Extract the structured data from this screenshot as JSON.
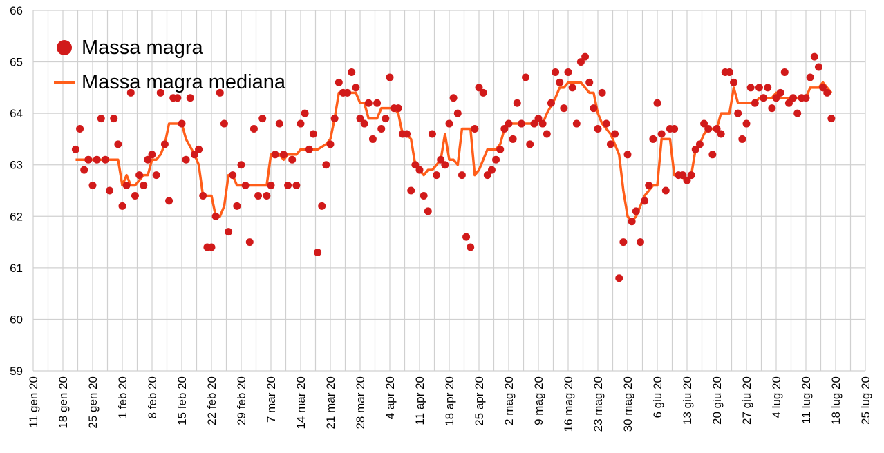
{
  "chart_data": {
    "type": "scatter",
    "title": "",
    "xlabel": "",
    "ylabel": "",
    "x_unit": "days since 11 gen 20",
    "xlim": [
      0,
      196
    ],
    "ylim": [
      59,
      66
    ],
    "yticks": [
      59,
      60,
      61,
      62,
      63,
      64,
      65,
      66
    ],
    "xtick_labels": [
      "11 gen 20",
      "18 gen 20",
      "25 gen 20",
      "1 feb 20",
      "8 feb 20",
      "15 feb 20",
      "22 feb 20",
      "29 feb 20",
      "7 mar 20",
      "14 mar 20",
      "21 mar 20",
      "28 mar 20",
      "4 apr 20",
      "11 apr 20",
      "18 apr 20",
      "25 apr 20",
      "2 mag 20",
      "9 mag 20",
      "16 mag 20",
      "23 mag 20",
      "30 mag 20",
      "6 giu 20",
      "13 giu 20",
      "20 giu 20",
      "27 giu 20",
      "4 lug 20",
      "11 lug 20",
      "18 lug 20",
      "25 lug 20"
    ],
    "grid": true,
    "legend_position": "top-left",
    "colors": {
      "points": "#d11a1a",
      "median": "#ff5e1a",
      "grid": "#d0d0d0"
    },
    "series": [
      {
        "name": "Massa magra",
        "kind": "scatter",
        "start_day": 10,
        "values": [
          63.3,
          63.7,
          62.9,
          63.1,
          62.6,
          63.1,
          63.9,
          63.1,
          62.5,
          63.9,
          63.4,
          62.2,
          62.6,
          64.4,
          62.4,
          62.8,
          62.6,
          63.1,
          63.2,
          62.8,
          64.4,
          63.4,
          62.3,
          64.3,
          64.3,
          63.8,
          63.1,
          64.3,
          63.2,
          63.3,
          62.4,
          61.4,
          61.4,
          62.0,
          64.4,
          63.8,
          61.7,
          62.8,
          62.2,
          63.0,
          62.6,
          61.5,
          63.7,
          62.4,
          63.9,
          62.4,
          62.6,
          63.2,
          63.8,
          63.2,
          62.6,
          63.1,
          62.6,
          63.8,
          64.0,
          63.3,
          63.6,
          61.3,
          62.2,
          63.0,
          63.4,
          63.9,
          64.6,
          64.4,
          64.4,
          64.8,
          64.5,
          63.9,
          63.8,
          64.2,
          63.5,
          64.2,
          63.7,
          63.9,
          64.7,
          64.1,
          64.1,
          63.6,
          63.6,
          62.5,
          63.0,
          62.9,
          62.4,
          62.1,
          63.6,
          62.8,
          63.1,
          63.0,
          63.8,
          64.3,
          64.0,
          62.8,
          61.6,
          61.4,
          63.7,
          64.5,
          64.4,
          62.8,
          62.9,
          63.1,
          63.3,
          63.7,
          63.8,
          63.5,
          64.2,
          63.8,
          64.7,
          63.4,
          63.8,
          63.9,
          63.8,
          63.6,
          64.2,
          64.8,
          64.6,
          64.1,
          64.8,
          64.5,
          63.8,
          65.0,
          65.1,
          64.6,
          64.1,
          63.7,
          64.4,
          63.8,
          63.4,
          63.6,
          60.8,
          61.5,
          63.2,
          61.9,
          62.1,
          61.5,
          62.3,
          62.6,
          63.5,
          64.2,
          63.6,
          62.5,
          63.7,
          63.7,
          62.8,
          62.8,
          62.7,
          62.8,
          63.3,
          63.4,
          63.8,
          63.7,
          63.2,
          63.7,
          63.6,
          64.8,
          64.8,
          64.6,
          64.0,
          63.5,
          63.8,
          64.5,
          64.2,
          64.5,
          64.3,
          64.5,
          64.1,
          64.3,
          64.4,
          64.8,
          64.2,
          64.3,
          64.0,
          64.3,
          64.3,
          64.7,
          65.1,
          64.9,
          64.5,
          64.4,
          63.9
        ]
      },
      {
        "name": "Massa magra mediana",
        "kind": "line",
        "points": [
          [
            10,
            63.1
          ],
          [
            20,
            63.1
          ],
          [
            21,
            62.6
          ],
          [
            22,
            62.8
          ],
          [
            23,
            62.6
          ],
          [
            24,
            62.6
          ],
          [
            26,
            62.8
          ],
          [
            27,
            62.8
          ],
          [
            28,
            63.1
          ],
          [
            29,
            63.1
          ],
          [
            30,
            63.2
          ],
          [
            31,
            63.4
          ],
          [
            32,
            63.8
          ],
          [
            35,
            63.8
          ],
          [
            36,
            63.5
          ],
          [
            38,
            63.2
          ],
          [
            39,
            63.0
          ],
          [
            40,
            62.4
          ],
          [
            42,
            62.4
          ],
          [
            43,
            62.0
          ],
          [
            44,
            62.0
          ],
          [
            45,
            62.2
          ],
          [
            46,
            62.8
          ],
          [
            47,
            62.8
          ],
          [
            48,
            62.6
          ],
          [
            55,
            62.6
          ],
          [
            56,
            63.2
          ],
          [
            58,
            63.2
          ],
          [
            59,
            63.1
          ],
          [
            60,
            63.2
          ],
          [
            62,
            63.2
          ],
          [
            63,
            63.3
          ],
          [
            67,
            63.3
          ],
          [
            69,
            63.4
          ],
          [
            70,
            63.5
          ],
          [
            71,
            63.9
          ],
          [
            72,
            64.4
          ],
          [
            76,
            64.4
          ],
          [
            77,
            64.2
          ],
          [
            78,
            64.2
          ],
          [
            79,
            63.9
          ],
          [
            81,
            63.9
          ],
          [
            82,
            64.1
          ],
          [
            85,
            64.1
          ],
          [
            86,
            64.0
          ],
          [
            87,
            63.6
          ],
          [
            88,
            63.6
          ],
          [
            89,
            63.5
          ],
          [
            90,
            63.0
          ],
          [
            91,
            62.9
          ],
          [
            92,
            62.8
          ],
          [
            93,
            62.9
          ],
          [
            94,
            62.9
          ],
          [
            95,
            63.0
          ],
          [
            96,
            63.1
          ],
          [
            97,
            63.6
          ],
          [
            98,
            63.1
          ],
          [
            99,
            63.1
          ],
          [
            100,
            63.0
          ],
          [
            101,
            63.7
          ],
          [
            103,
            63.7
          ],
          [
            104,
            62.8
          ],
          [
            105,
            62.9
          ],
          [
            107,
            63.3
          ],
          [
            109,
            63.3
          ],
          [
            110,
            63.4
          ],
          [
            111,
            63.7
          ],
          [
            112,
            63.8
          ],
          [
            118,
            63.8
          ],
          [
            119,
            63.9
          ],
          [
            120,
            63.8
          ],
          [
            121,
            64.0
          ],
          [
            123,
            64.3
          ],
          [
            124,
            64.5
          ],
          [
            125,
            64.5
          ],
          [
            126,
            64.6
          ],
          [
            129,
            64.6
          ],
          [
            130,
            64.5
          ],
          [
            131,
            64.4
          ],
          [
            132,
            64.4
          ],
          [
            133,
            64.0
          ],
          [
            134,
            63.8
          ],
          [
            135,
            63.7
          ],
          [
            136,
            63.6
          ],
          [
            137,
            63.4
          ],
          [
            138,
            63.2
          ],
          [
            139,
            62.5
          ],
          [
            140,
            62.0
          ],
          [
            141,
            61.9
          ],
          [
            142,
            62.0
          ],
          [
            143,
            62.2
          ],
          [
            144,
            62.4
          ],
          [
            145,
            62.5
          ],
          [
            146,
            62.6
          ],
          [
            147,
            62.6
          ],
          [
            148,
            63.5
          ],
          [
            150,
            63.5
          ],
          [
            151,
            62.8
          ],
          [
            152,
            62.8
          ],
          [
            154,
            62.7
          ],
          [
            155,
            62.8
          ],
          [
            156,
            63.3
          ],
          [
            157,
            63.4
          ],
          [
            158,
            63.6
          ],
          [
            159,
            63.7
          ],
          [
            161,
            63.7
          ],
          [
            162,
            64.0
          ],
          [
            164,
            64.0
          ],
          [
            165,
            64.5
          ],
          [
            166,
            64.2
          ],
          [
            170,
            64.2
          ],
          [
            171,
            64.3
          ],
          [
            174,
            64.3
          ],
          [
            175,
            64.4
          ],
          [
            176,
            64.3
          ],
          [
            182,
            64.3
          ],
          [
            183,
            64.5
          ],
          [
            185,
            64.5
          ],
          [
            186,
            64.6
          ],
          [
            187,
            64.5
          ],
          [
            188,
            64.4
          ]
        ]
      }
    ]
  }
}
